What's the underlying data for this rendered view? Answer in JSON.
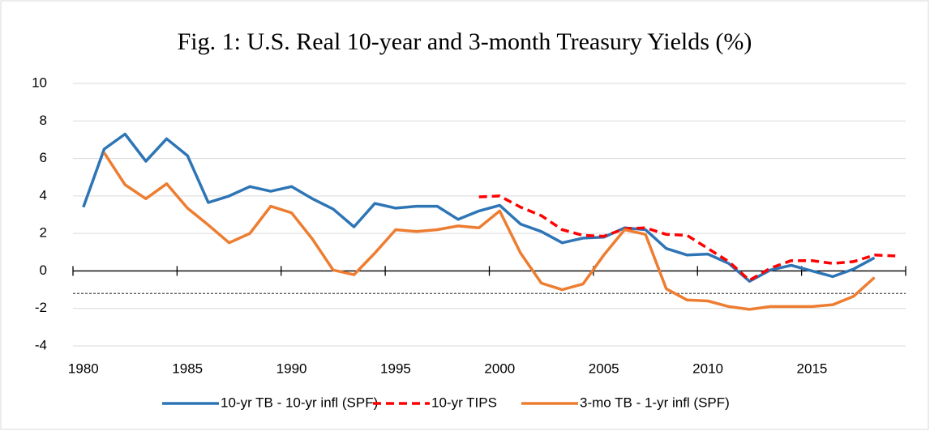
{
  "chart_data": {
    "type": "line",
    "title": "Fig. 1: U.S. Real 10-year and 3-month Treasury Yields (%)",
    "categories": [
      1980,
      null,
      null,
      null,
      null,
      1985,
      null,
      null,
      null,
      null,
      1990,
      null,
      null,
      null,
      null,
      1995,
      null,
      null,
      null,
      null,
      2000,
      null,
      null,
      null,
      null,
      2005,
      null,
      null,
      null,
      null,
      2010,
      null,
      null,
      null,
      null,
      2015,
      null,
      null,
      null,
      null
    ],
    "series": [
      {
        "name": "10-yr TB - 10-yr infl (SPF)",
        "color": "#2e75b6",
        "dash": "solid",
        "values": [
          3.4,
          6.5,
          7.3,
          5.85,
          7.05,
          6.15,
          3.65,
          4.0,
          4.5,
          4.25,
          4.5,
          3.85,
          3.3,
          2.35,
          3.6,
          3.35,
          3.45,
          3.45,
          2.75,
          3.2,
          3.5,
          2.5,
          2.1,
          1.5,
          1.75,
          1.8,
          2.3,
          2.2,
          1.2,
          0.85,
          0.9,
          0.4,
          -0.55,
          0.05,
          0.3,
          0.0,
          -0.3,
          0.1,
          0.7,
          null
        ]
      },
      {
        "name": "10-yr TIPS",
        "color": "#ff0000",
        "dash": "dashed",
        "values": [
          null,
          null,
          null,
          null,
          null,
          null,
          null,
          null,
          null,
          null,
          null,
          null,
          null,
          null,
          null,
          null,
          null,
          null,
          null,
          3.95,
          4.0,
          3.4,
          2.95,
          2.2,
          1.9,
          1.85,
          2.25,
          2.3,
          1.95,
          1.9,
          1.2,
          0.5,
          -0.5,
          0.15,
          0.55,
          0.55,
          0.4,
          0.5,
          0.85,
          0.8
        ]
      },
      {
        "name": "3-mo TB - 1-yr infl (SPF)",
        "color": "#ed7d31",
        "dash": "solid",
        "values": [
          null,
          6.3,
          4.6,
          3.85,
          4.65,
          3.35,
          2.45,
          1.5,
          2.0,
          3.45,
          3.1,
          1.7,
          0.05,
          -0.2,
          0.95,
          2.2,
          2.1,
          2.2,
          2.4,
          2.3,
          3.2,
          0.95,
          -0.65,
          -1.0,
          -0.7,
          0.85,
          2.2,
          1.95,
          -0.95,
          -1.55,
          -1.6,
          -1.9,
          -2.05,
          -1.9,
          -1.9,
          -1.9,
          -1.8,
          -1.35,
          -0.35,
          null
        ]
      }
    ],
    "reference_line": -1.2,
    "ylim": [
      -4,
      10
    ],
    "yticks": [
      -4,
      -2,
      0,
      2,
      4,
      6,
      8,
      10
    ],
    "grid": true,
    "legend": "bottom"
  }
}
